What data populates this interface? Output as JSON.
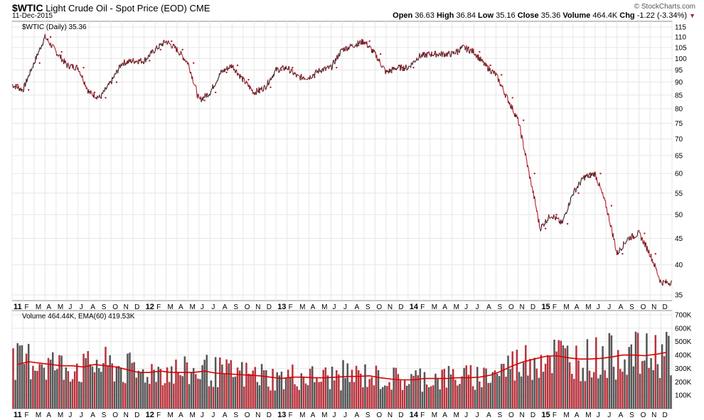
{
  "header": {
    "symbol": "$WTIC",
    "name": "Light Crude Oil - Spot Price (EOD)",
    "exchange": "CME",
    "date": "11-Dec-2015",
    "brand": "© StockCharts.com",
    "open_label": "Open",
    "open": "36.63",
    "high_label": "High",
    "high": "36.84",
    "low_label": "Low",
    "low": "35.16",
    "close_label": "Close",
    "close": "35.36",
    "volume_label": "Volume",
    "volume": "464.4K",
    "chg_label": "Chg",
    "chg": "-1.22 (-3.34%)",
    "down_arrow": "▼"
  },
  "colors": {
    "down": "#b41c2a",
    "up": "#222222",
    "grid": "#e6e6e6",
    "vol_up": "#555555",
    "vol_down": "#b8323c",
    "ema": "#d80000"
  },
  "chart_data": [
    {
      "type": "line",
      "legend": "$WTIC (Daily) 35.36",
      "y_scale": "log",
      "ylim": [
        35,
        115
      ],
      "yticks": [
        35,
        40,
        45,
        50,
        55,
        60,
        65,
        70,
        75,
        80,
        85,
        90,
        95,
        100,
        105,
        110,
        115
      ],
      "x_tick_labels": [
        "11",
        "F",
        "M",
        "A",
        "M",
        "J",
        "J",
        "A",
        "S",
        "O",
        "N",
        "D",
        "12",
        "F",
        "M",
        "A",
        "M",
        "J",
        "J",
        "A",
        "S",
        "O",
        "N",
        "D",
        "13",
        "F",
        "M",
        "A",
        "M",
        "J",
        "J",
        "A",
        "S",
        "O",
        "N",
        "D",
        "14",
        "F",
        "M",
        "A",
        "M",
        "J",
        "J",
        "A",
        "S",
        "O",
        "N",
        "D",
        "15",
        "F",
        "M",
        "A",
        "M",
        "J",
        "J",
        "A",
        "S",
        "O",
        "N",
        "D"
      ],
      "x": [
        "2011-01",
        "2011-02",
        "2011-03",
        "2011-04",
        "2011-05",
        "2011-06",
        "2011-07",
        "2011-08",
        "2011-09",
        "2011-10",
        "2011-11",
        "2011-12",
        "2012-01",
        "2012-02",
        "2012-03",
        "2012-04",
        "2012-05",
        "2012-06",
        "2012-07",
        "2012-08",
        "2012-09",
        "2012-10",
        "2012-11",
        "2012-12",
        "2013-01",
        "2013-02",
        "2013-03",
        "2013-04",
        "2013-05",
        "2013-06",
        "2013-07",
        "2013-08",
        "2013-09",
        "2013-10",
        "2013-11",
        "2013-12",
        "2014-01",
        "2014-02",
        "2014-03",
        "2014-04",
        "2014-05",
        "2014-06",
        "2014-07",
        "2014-08",
        "2014-09",
        "2014-10",
        "2014-11",
        "2014-12",
        "2015-01",
        "2015-02",
        "2015-03",
        "2015-04",
        "2015-05",
        "2015-06",
        "2015-07",
        "2015-08",
        "2015-09",
        "2015-10",
        "2015-11",
        "2015-12"
      ],
      "series": [
        {
          "values": [
            89,
            87,
            98,
            110,
            103,
            97,
            96,
            86,
            84,
            90,
            98,
            99,
            99,
            104,
            108,
            104,
            98,
            83,
            86,
            94,
            97,
            91,
            86,
            88,
            95,
            96,
            92,
            92,
            95,
            96,
            104,
            106,
            108,
            102,
            94,
            96,
            96,
            101,
            102,
            102,
            102,
            105,
            103,
            97,
            93,
            84,
            76,
            60,
            47,
            50,
            48,
            55,
            59,
            60,
            52,
            42,
            45,
            46,
            42,
            37
          ]
        }
      ]
    },
    {
      "type": "bar",
      "legend": "Volume 464.44K, EMA(60) 419.53K",
      "ylim": [
        0,
        700
      ],
      "ytick_labels": [
        "100K",
        "200K",
        "300K",
        "400K",
        "500K",
        "600K",
        "700K"
      ],
      "yticks": [
        100,
        200,
        300,
        400,
        500,
        600,
        700
      ],
      "x_tick_labels": [
        "11",
        "F",
        "M",
        "A",
        "M",
        "J",
        "J",
        "A",
        "S",
        "O",
        "N",
        "D",
        "12",
        "F",
        "M",
        "A",
        "M",
        "J",
        "J",
        "A",
        "S",
        "O",
        "N",
        "D",
        "13",
        "F",
        "M",
        "A",
        "M",
        "J",
        "J",
        "A",
        "S",
        "O",
        "N",
        "D",
        "14",
        "F",
        "M",
        "A",
        "M",
        "J",
        "J",
        "A",
        "S",
        "O",
        "N",
        "D",
        "15",
        "F",
        "M",
        "A",
        "M",
        "J",
        "J",
        "A",
        "S",
        "O",
        "N",
        "D"
      ],
      "series": [
        {
          "name": "Volume",
          "values": [
            340,
            360,
            360,
            330,
            310,
            320,
            300,
            340,
            320,
            310,
            290,
            260,
            280,
            290,
            280,
            270,
            270,
            290,
            270,
            260,
            260,
            250,
            250,
            230,
            220,
            240,
            240,
            230,
            230,
            240,
            250,
            240,
            250,
            230,
            220,
            210,
            220,
            230,
            230,
            230,
            240,
            230,
            240,
            260,
            290,
            330,
            360,
            380,
            400,
            400,
            380,
            370,
            370,
            380,
            390,
            420,
            400,
            390,
            410,
            440
          ]
        },
        {
          "name": "EMA(60)",
          "values": [
            330,
            350,
            340,
            330,
            320,
            320,
            310,
            330,
            320,
            310,
            290,
            270,
            270,
            280,
            270,
            270,
            270,
            280,
            265,
            260,
            255,
            250,
            245,
            235,
            225,
            235,
            235,
            230,
            230,
            235,
            240,
            240,
            245,
            230,
            220,
            215,
            215,
            225,
            225,
            225,
            230,
            230,
            235,
            250,
            280,
            320,
            350,
            370,
            390,
            395,
            380,
            370,
            370,
            375,
            385,
            400,
            400,
            395,
            405,
            420
          ]
        }
      ]
    }
  ]
}
